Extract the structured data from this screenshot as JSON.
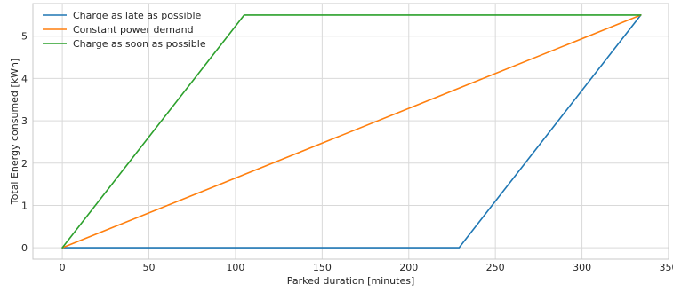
{
  "chart_data": {
    "type": "line",
    "title": "",
    "xlabel": "Parked duration [minutes]",
    "ylabel": "Total Energy consumed [kWh]",
    "xlim": [
      -17,
      350
    ],
    "ylim": [
      -0.27,
      5.77
    ],
    "xticks": [
      0,
      50,
      100,
      150,
      200,
      250,
      300,
      350
    ],
    "yticks": [
      0,
      1,
      2,
      3,
      4,
      5
    ],
    "grid": true,
    "legend_position": "top-left",
    "series": [
      {
        "name": "Charge as late as possible",
        "color": "#1f77b4",
        "x": [
          0,
          229,
          334
        ],
        "y": [
          0,
          0,
          5.5
        ]
      },
      {
        "name": "Constant power demand",
        "color": "#ff7f0e",
        "x": [
          0,
          334
        ],
        "y": [
          0,
          5.5
        ]
      },
      {
        "name": "Charge as soon as possible",
        "color": "#2ca02c",
        "x": [
          0,
          105,
          334
        ],
        "y": [
          0,
          5.5,
          5.5
        ]
      }
    ]
  }
}
